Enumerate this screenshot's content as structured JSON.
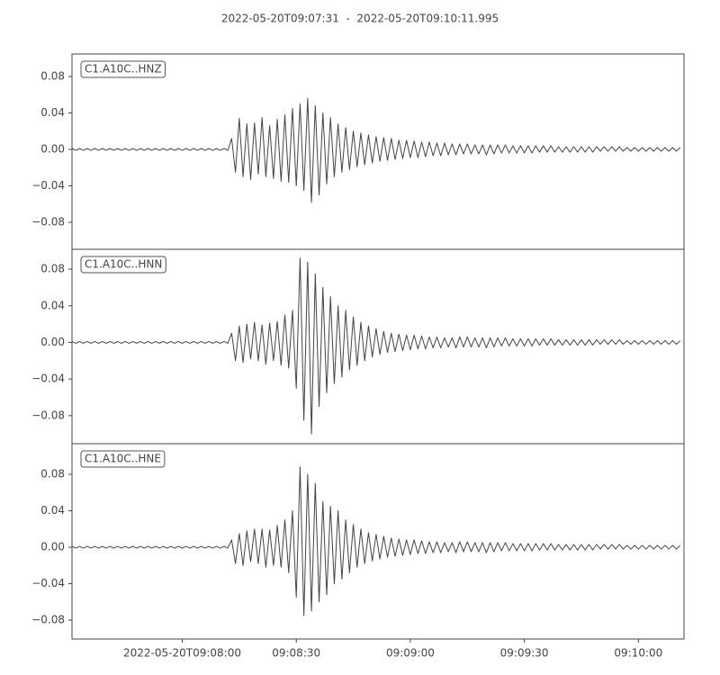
{
  "chart_data": {
    "type": "line",
    "title": "2022-05-20T09:07:31  -  2022-05-20T09:10:11.995",
    "xlim": [
      0,
      160.995
    ],
    "xticks": [
      {
        "value": 29,
        "label": "2022-05-20T09:08:00"
      },
      {
        "value": 59,
        "label": "09:08:30"
      },
      {
        "value": 89,
        "label": "09:09:00"
      },
      {
        "value": 119,
        "label": "09:09:30"
      },
      {
        "value": 149,
        "label": "09:10:00"
      }
    ],
    "x": [
      0,
      1,
      2,
      3,
      4,
      5,
      6,
      7,
      8,
      9,
      10,
      11,
      12,
      13,
      14,
      15,
      16,
      17,
      18,
      19,
      20,
      21,
      22,
      23,
      24,
      25,
      26,
      27,
      28,
      29,
      30,
      31,
      32,
      33,
      34,
      35,
      36,
      37,
      38,
      39,
      40,
      41,
      42,
      43,
      44,
      45,
      46,
      47,
      48,
      49,
      50,
      51,
      52,
      53,
      54,
      55,
      56,
      57,
      58,
      59,
      60,
      61,
      62,
      63,
      64,
      65,
      66,
      67,
      68,
      69,
      70,
      71,
      72,
      73,
      74,
      75,
      76,
      77,
      78,
      79,
      80,
      81,
      82,
      83,
      84,
      85,
      86,
      87,
      88,
      89,
      90,
      91,
      92,
      93,
      94,
      95,
      96,
      97,
      98,
      99,
      100,
      101,
      102,
      103,
      104,
      105,
      106,
      107,
      108,
      109,
      110,
      111,
      112,
      113,
      114,
      115,
      116,
      117,
      118,
      119,
      120,
      121,
      122,
      123,
      124,
      125,
      126,
      127,
      128,
      129,
      130,
      131,
      132,
      133,
      134,
      135,
      136,
      137,
      138,
      139,
      140,
      141,
      142,
      143,
      144,
      145,
      146,
      147,
      148,
      149,
      150,
      151,
      152,
      153,
      154,
      155,
      156,
      157,
      158,
      159,
      160
    ],
    "series": [
      {
        "name": "C1.A10C..HNZ",
        "color": "#444444",
        "ylim": [
          -0.1096,
          0.1047
        ],
        "yticks": [
          {
            "value": 0.08,
            "label": "0.08"
          },
          {
            "value": 0.04,
            "label": "0.04"
          },
          {
            "value": 0,
            "label": "0.00"
          },
          {
            "value": -0.04,
            "label": "−0.04"
          },
          {
            "value": -0.08,
            "label": "−0.08"
          }
        ],
        "values": [
          0.001,
          -0.001,
          0.001,
          -0.001,
          0.001,
          -0.001,
          0.001,
          -0.001,
          0.001,
          -0.001,
          0.001,
          -0.001,
          0.001,
          -0.001,
          0.001,
          -0.001,
          0.001,
          -0.001,
          0.001,
          -0.001,
          0.001,
          -0.001,
          0.001,
          -0.001,
          0.001,
          -0.001,
          0.001,
          -0.001,
          0.001,
          -0.001,
          0.001,
          -0.001,
          0.001,
          -0.001,
          0.001,
          -0.001,
          0.001,
          -0.001,
          0.001,
          -0.001,
          0.001,
          -0.001,
          0.012,
          -0.025,
          0.034,
          -0.03,
          0.028,
          -0.033,
          0.029,
          -0.027,
          0.035,
          -0.03,
          0.026,
          -0.032,
          0.033,
          -0.035,
          0.038,
          -0.036,
          0.045,
          -0.04,
          0.05,
          -0.045,
          0.056,
          -0.058,
          0.048,
          -0.05,
          0.04,
          -0.038,
          0.035,
          -0.03,
          0.028,
          -0.025,
          0.024,
          -0.022,
          0.02,
          -0.019,
          0.018,
          -0.017,
          0.016,
          -0.015,
          0.014,
          -0.013,
          0.013,
          -0.012,
          0.012,
          -0.011,
          0.01,
          -0.01,
          0.01,
          -0.009,
          0.009,
          -0.009,
          0.008,
          -0.008,
          0.008,
          -0.007,
          0.007,
          -0.007,
          0.007,
          -0.006,
          0.006,
          -0.006,
          0.006,
          -0.005,
          0.006,
          -0.005,
          0.005,
          -0.005,
          0.005,
          -0.006,
          0.005,
          -0.005,
          0.005,
          -0.004,
          0.005,
          -0.004,
          0.004,
          -0.004,
          0.004,
          -0.004,
          0.004,
          -0.004,
          0.004,
          -0.003,
          0.004,
          -0.003,
          0.004,
          -0.003,
          0.003,
          -0.003,
          0.003,
          -0.003,
          0.003,
          -0.003,
          0.003,
          -0.003,
          0.003,
          -0.003,
          0.003,
          -0.002,
          0.003,
          -0.002,
          0.003,
          -0.002,
          0.003,
          -0.002,
          0.002,
          -0.002,
          0.002,
          -0.002,
          0.002,
          -0.002,
          0.002,
          -0.002,
          0.002,
          -0.002,
          0.002,
          -0.002,
          0.002,
          -0.002,
          0.002
        ]
      },
      {
        "name": "C1.A10C..HNN",
        "color": "#444444",
        "ylim": [
          -0.1116,
          0.1017
        ],
        "yticks": [
          {
            "value": 0.08,
            "label": "0.08"
          },
          {
            "value": 0.04,
            "label": "0.04"
          },
          {
            "value": 0,
            "label": "0.00"
          },
          {
            "value": -0.04,
            "label": "−0.04"
          },
          {
            "value": -0.08,
            "label": "−0.08"
          }
        ],
        "values": [
          0.001,
          -0.001,
          0.001,
          -0.001,
          0.001,
          -0.001,
          0.001,
          -0.001,
          0.001,
          -0.001,
          0.001,
          -0.001,
          0.001,
          -0.001,
          0.001,
          -0.001,
          0.001,
          -0.001,
          0.001,
          -0.001,
          0.001,
          -0.001,
          0.001,
          -0.001,
          0.001,
          -0.001,
          0.001,
          -0.001,
          0.001,
          -0.001,
          0.001,
          -0.001,
          0.001,
          -0.001,
          0.001,
          -0.001,
          0.001,
          -0.001,
          0.001,
          -0.001,
          0.001,
          -0.001,
          0.01,
          -0.02,
          0.018,
          -0.022,
          0.02,
          -0.018,
          0.022,
          -0.02,
          0.019,
          -0.024,
          0.021,
          -0.02,
          0.023,
          -0.025,
          0.03,
          -0.028,
          0.035,
          -0.05,
          0.092,
          -0.085,
          0.088,
          -0.1,
          0.075,
          -0.07,
          0.06,
          -0.055,
          0.05,
          -0.045,
          0.04,
          -0.038,
          0.035,
          -0.03,
          0.028,
          -0.025,
          0.022,
          -0.02,
          0.018,
          -0.016,
          0.015,
          -0.013,
          0.012,
          -0.011,
          0.01,
          -0.01,
          0.009,
          -0.009,
          0.008,
          -0.008,
          0.008,
          -0.007,
          0.007,
          -0.007,
          0.006,
          -0.006,
          0.006,
          -0.006,
          0.005,
          -0.005,
          0.005,
          -0.006,
          0.006,
          -0.005,
          0.006,
          -0.005,
          0.005,
          -0.005,
          0.005,
          -0.006,
          0.005,
          -0.005,
          0.005,
          -0.004,
          0.005,
          -0.004,
          0.004,
          -0.004,
          0.004,
          -0.004,
          0.004,
          -0.004,
          0.004,
          -0.003,
          0.004,
          -0.003,
          0.004,
          -0.003,
          0.003,
          -0.003,
          0.003,
          -0.003,
          0.003,
          -0.003,
          0.003,
          -0.003,
          0.003,
          -0.003,
          0.003,
          -0.002,
          0.003,
          -0.002,
          0.003,
          -0.002,
          0.003,
          -0.002,
          0.002,
          -0.002,
          0.002,
          -0.002,
          0.002,
          -0.002,
          0.002,
          -0.002,
          0.002,
          -0.002,
          0.002,
          -0.002,
          0.002,
          -0.002,
          0.002
        ]
      },
      {
        "name": "C1.A10C..HNE",
        "color": "#444444",
        "ylim": [
          -0.1007,
          0.1136
        ],
        "yticks": [
          {
            "value": 0.08,
            "label": "0.08"
          },
          {
            "value": 0.04,
            "label": "0.04"
          },
          {
            "value": 0,
            "label": "0.00"
          },
          {
            "value": -0.04,
            "label": "−0.04"
          },
          {
            "value": -0.08,
            "label": "−0.08"
          }
        ],
        "values": [
          0.001,
          -0.001,
          0.001,
          -0.001,
          0.001,
          -0.001,
          0.001,
          -0.001,
          0.001,
          -0.001,
          0.001,
          -0.001,
          0.001,
          -0.001,
          0.001,
          -0.001,
          0.001,
          -0.001,
          0.001,
          -0.001,
          0.001,
          -0.001,
          0.001,
          -0.001,
          0.001,
          -0.001,
          0.001,
          -0.001,
          0.001,
          -0.001,
          0.001,
          -0.001,
          0.001,
          -0.001,
          0.001,
          -0.001,
          0.001,
          -0.001,
          0.001,
          -0.001,
          0.001,
          -0.001,
          0.008,
          -0.018,
          0.015,
          -0.02,
          0.018,
          -0.016,
          0.02,
          -0.018,
          0.02,
          -0.022,
          0.019,
          -0.02,
          0.024,
          -0.022,
          0.03,
          -0.028,
          0.04,
          -0.055,
          0.088,
          -0.075,
          0.08,
          -0.07,
          0.07,
          -0.06,
          0.05,
          -0.052,
          0.045,
          -0.04,
          0.04,
          -0.035,
          0.03,
          -0.028,
          0.025,
          -0.022,
          0.02,
          -0.018,
          0.016,
          -0.015,
          0.014,
          -0.013,
          0.012,
          -0.011,
          0.01,
          -0.01,
          0.009,
          -0.009,
          0.008,
          -0.008,
          0.008,
          -0.007,
          0.007,
          -0.007,
          0.006,
          -0.006,
          0.006,
          -0.006,
          0.005,
          -0.005,
          0.005,
          -0.006,
          0.006,
          -0.005,
          0.006,
          -0.005,
          0.005,
          -0.005,
          0.005,
          -0.006,
          0.005,
          -0.005,
          0.005,
          -0.004,
          0.005,
          -0.004,
          0.004,
          -0.004,
          0.004,
          -0.004,
          0.004,
          -0.004,
          0.004,
          -0.003,
          0.004,
          -0.003,
          0.004,
          -0.003,
          0.003,
          -0.003,
          0.003,
          -0.003,
          0.003,
          -0.003,
          0.003,
          -0.003,
          0.003,
          -0.003,
          0.003,
          -0.002,
          0.003,
          -0.002,
          0.003,
          -0.002,
          0.003,
          -0.002,
          0.002,
          -0.002,
          0.002,
          -0.002,
          0.002,
          -0.002,
          0.002,
          -0.002,
          0.002,
          -0.002,
          0.002,
          -0.002,
          0.002,
          -0.002,
          0.002
        ]
      }
    ]
  }
}
